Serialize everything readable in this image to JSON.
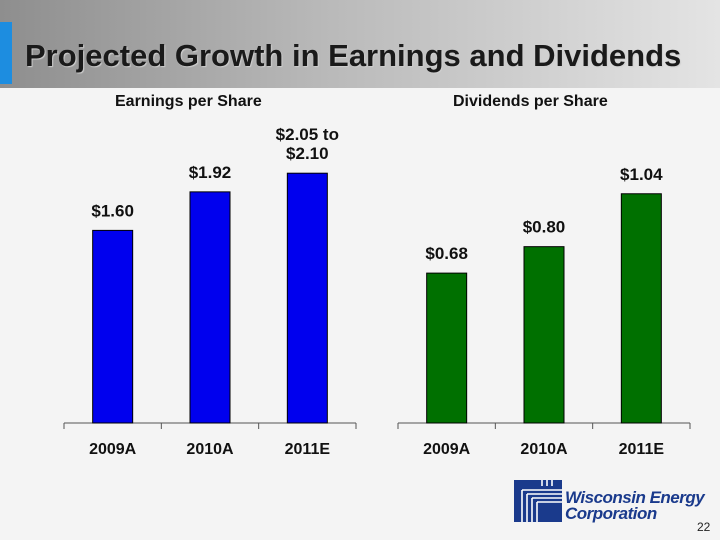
{
  "slide": {
    "title": "Projected Growth in Earnings and Dividends",
    "page_number": "22"
  },
  "logo": {
    "line1": "Wisconsin Energy",
    "line2": "Corporation",
    "color": "#1a3a8c"
  },
  "chart_data": [
    {
      "type": "bar",
      "title": "Earnings per Share",
      "categories": [
        "2009A",
        "2010A",
        "2011E"
      ],
      "values": [
        1.6,
        1.92,
        2.075
      ],
      "data_labels": [
        [
          "$1.60"
        ],
        [
          "$1.92"
        ],
        [
          "$2.05 to",
          "$2.10"
        ]
      ],
      "ylim": [
        0,
        2.6
      ],
      "color": "#0000ee",
      "grid": false
    },
    {
      "type": "bar",
      "title": "Dividends per Share",
      "categories": [
        "2009A",
        "2010A",
        "2011E"
      ],
      "values": [
        0.68,
        0.8,
        1.04
      ],
      "data_labels": [
        [
          "$0.68"
        ],
        [
          "$0.80"
        ],
        [
          "$1.04"
        ]
      ],
      "ylim": [
        0,
        1.42
      ],
      "color": "#007000",
      "grid": false
    }
  ]
}
